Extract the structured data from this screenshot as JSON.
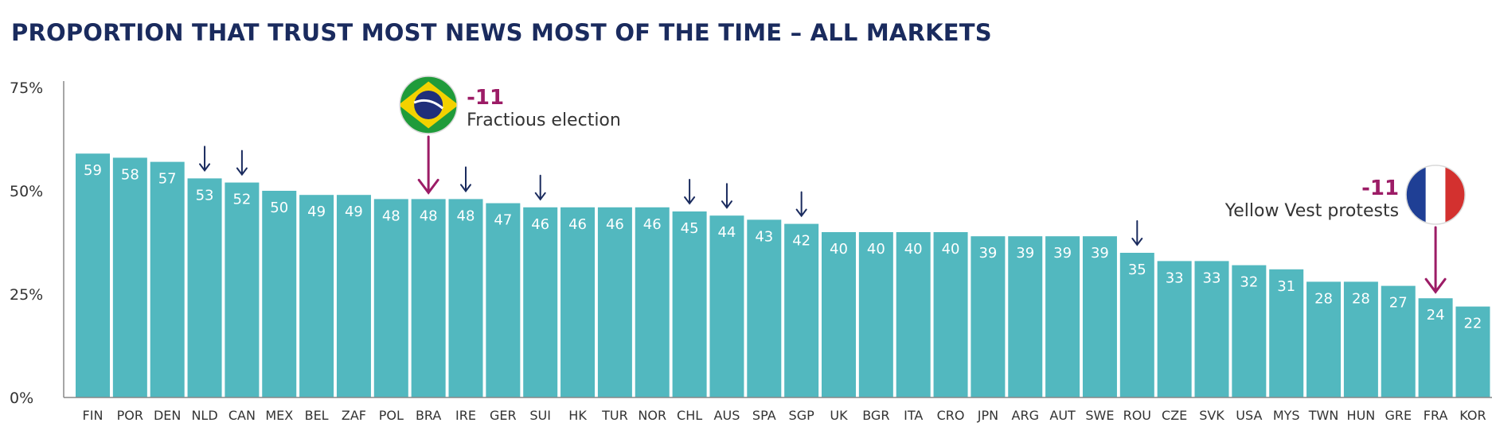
{
  "chart_data": {
    "type": "bar",
    "title": "PROPORTION THAT TRUST MOST NEWS MOST OF THE TIME – ALL MARKETS",
    "categories": [
      "FIN",
      "POR",
      "DEN",
      "NLD",
      "CAN",
      "MEX",
      "BEL",
      "ZAF",
      "POL",
      "BRA",
      "IRE",
      "GER",
      "SUI",
      "HK",
      "TUR",
      "NOR",
      "CHL",
      "AUS",
      "SPA",
      "SGP",
      "UK",
      "BGR",
      "ITA",
      "CRO",
      "JPN",
      "ARG",
      "AUT",
      "SWE",
      "ROU",
      "CZE",
      "SVK",
      "USA",
      "MYS",
      "TWN",
      "HUN",
      "GRE",
      "FRA",
      "KOR"
    ],
    "values": [
      59,
      58,
      57,
      53,
      52,
      50,
      49,
      49,
      48,
      48,
      48,
      47,
      46,
      46,
      46,
      46,
      45,
      44,
      43,
      42,
      40,
      40,
      40,
      40,
      39,
      39,
      39,
      39,
      35,
      33,
      33,
      32,
      31,
      28,
      28,
      27,
      24,
      22
    ],
    "ylim": [
      0,
      75
    ],
    "yticks": [
      0,
      25,
      50,
      75
    ],
    "ytick_labels": [
      "0%",
      "25%",
      "50%",
      "75%"
    ],
    "bar_color": "#52b8bf",
    "decline_arrow_markets": [
      "NLD",
      "CAN",
      "IRE",
      "SUI",
      "CHL",
      "AUS",
      "SGP",
      "ROU"
    ],
    "decline_arrow_color": "#1a2b5e",
    "annotations": [
      {
        "market": "BRA",
        "change": "-11",
        "text": "Fractious election",
        "flag": "brazil-flag",
        "side": "right"
      },
      {
        "market": "FRA",
        "change": "-11",
        "text": "Yellow Vest protests",
        "flag": "france-flag",
        "side": "left"
      }
    ],
    "annotation_color": "#9c1c66",
    "grid": false
  }
}
